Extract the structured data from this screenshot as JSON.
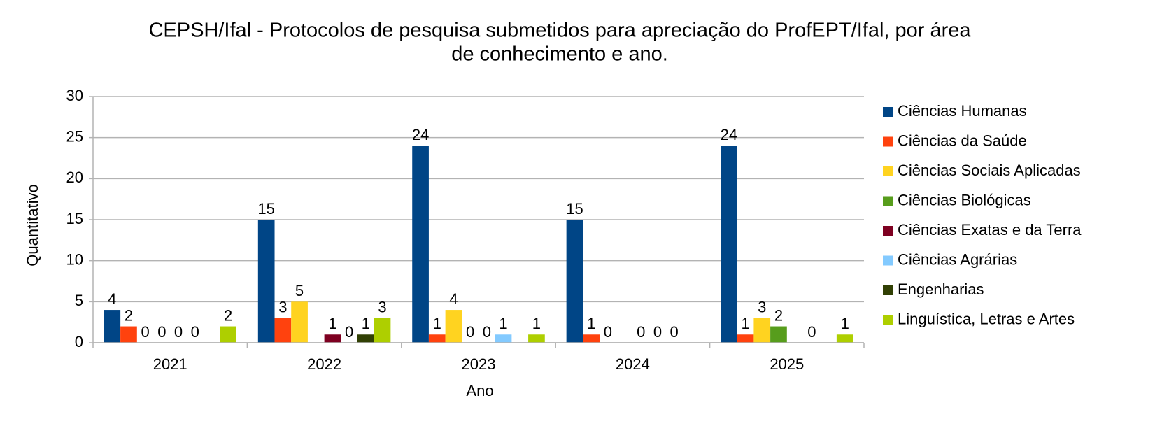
{
  "chart_data": {
    "type": "bar",
    "title": "CEPSH/Ifal - Protocolos de pesquisa submetidos para apreciação do ProfEPT/Ifal, por área",
    "subtitle": "de conhecimento e ano.",
    "x_label": "Ano",
    "y_label": "Quantitativo",
    "categories": [
      "2021",
      "2022",
      "2023",
      "2024",
      "2025"
    ],
    "series": [
      {
        "name": "Ciências Humanas",
        "color": "#004586",
        "values": [
          4,
          15,
          24,
          15,
          24
        ]
      },
      {
        "name": "Ciências da Saúde",
        "color": "#ff420e",
        "values": [
          2,
          3,
          1,
          1,
          1
        ]
      },
      {
        "name": "Ciências Sociais Aplicadas",
        "color": "#ffd320",
        "values": [
          0,
          5,
          4,
          0,
          3
        ]
      },
      {
        "name": "Ciências Biológicas",
        "color": "#579d1c",
        "values": [
          0,
          null,
          0,
          null,
          2
        ]
      },
      {
        "name": "Ciências Exatas e da Terra",
        "color": "#7e0021",
        "values": [
          0,
          1,
          0,
          0,
          null
        ]
      },
      {
        "name": "Ciências Agrárias",
        "color": "#83caff",
        "values": [
          0,
          0,
          1,
          0,
          0
        ]
      },
      {
        "name": "Engenharias",
        "color": "#314004",
        "values": [
          null,
          1,
          null,
          0,
          null
        ]
      },
      {
        "name": "Linguística, Letras e Artes",
        "color": "#aecf00",
        "values": [
          2,
          3,
          1,
          null,
          1
        ]
      }
    ],
    "ylim": [
      0,
      30
    ],
    "yticks": [
      0,
      5,
      10,
      15,
      20,
      25,
      30
    ],
    "grid": true,
    "legend": "right"
  }
}
